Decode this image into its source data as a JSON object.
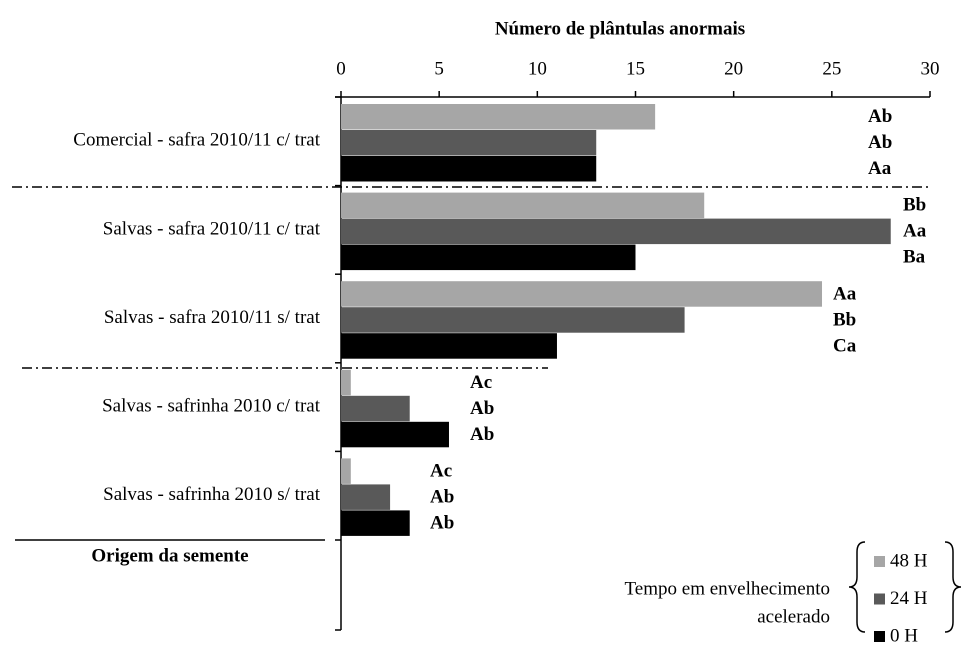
{
  "chart_data": {
    "type": "bar",
    "orientation": "horizontal",
    "title": "Número de plântulas anormais",
    "y_axis_label": "Origem da semente",
    "categories": [
      "Comercial - safra 2010/11 c/ trat",
      "Salvas - safra 2010/11 c/ trat",
      "Salvas - safra 2010/11 s/ trat",
      "Salvas - safrinha 2010 c/ trat",
      "Salvas - safrinha 2010 s/ trat"
    ],
    "series": [
      {
        "name": "48 H",
        "color": "#a6a6a6",
        "values": [
          16,
          18.5,
          24.5,
          0.5,
          0.5
        ],
        "letters": [
          "Ab",
          "Bb",
          "Aa",
          "Ac",
          "Ac"
        ]
      },
      {
        "name": "24 H",
        "color": "#595959",
        "values": [
          13,
          28,
          17.5,
          3.5,
          2.5
        ],
        "letters": [
          "Ab",
          "Aa",
          "Bb",
          "Ab",
          "Ab"
        ]
      },
      {
        "name": "0 H",
        "color": "#000000",
        "values": [
          13,
          15,
          11,
          5.5,
          3.5
        ],
        "letters": [
          "Aa",
          "Ba",
          "Ca",
          "Ab",
          "Ab"
        ]
      }
    ],
    "legend_title": [
      "Tempo em envelhecimento",
      "acelerado"
    ],
    "xlim": [
      0,
      30
    ],
    "xticks": [
      0,
      5,
      10,
      15,
      20,
      25,
      30
    ],
    "grid": false,
    "legend_position": "lower right"
  }
}
